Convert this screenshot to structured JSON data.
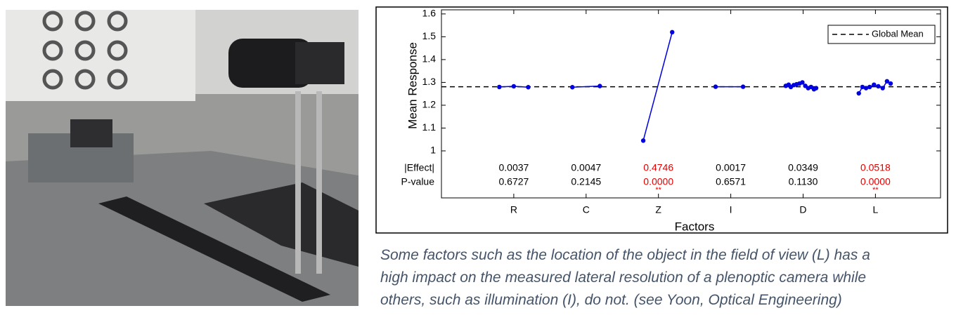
{
  "chart_data": {
    "type": "line",
    "ylabel": "Mean Response",
    "xlabel": "Factors",
    "categories": [
      "R",
      "C",
      "Z",
      "I",
      "D",
      "L"
    ],
    "xlim": [
      0,
      6.9
    ],
    "ylim": [
      0.794,
      1.618
    ],
    "yticks": [
      {
        "value": 1,
        "label": "1"
      },
      1.1,
      1.2,
      1.3,
      1.4,
      1.5,
      1.6
    ],
    "series": [
      {
        "color": "#0000e0",
        "x": [
          0.8,
          1.0,
          1.2
        ],
        "values": [
          1.28,
          1.283,
          1.279
        ]
      },
      {
        "color": "#0000e0",
        "x": [
          1.81,
          2.19
        ],
        "values": [
          1.279,
          1.284
        ]
      },
      {
        "color": "#0000e0",
        "x": [
          2.79,
          3.19
        ],
        "values": [
          1.045,
          1.52
        ]
      },
      {
        "color": "#0000e0",
        "x": [
          3.79,
          4.17
        ],
        "values": [
          1.281,
          1.281
        ]
      },
      {
        "color": "#0000e0",
        "x": [
          4.76,
          4.8,
          4.83,
          4.87,
          4.91,
          4.95,
          4.99,
          5.03,
          5.07,
          5.11,
          5.15,
          5.18
        ],
        "values": [
          1.285,
          1.29,
          1.28,
          1.288,
          1.292,
          1.295,
          1.3,
          1.285,
          1.275,
          1.28,
          1.27,
          1.275
        ]
      },
      {
        "color": "#0000e0",
        "x": [
          5.77,
          5.82,
          5.87,
          5.92,
          5.98,
          6.04,
          6.1,
          6.16,
          6.21
        ],
        "values": [
          1.252,
          1.28,
          1.275,
          1.28,
          1.29,
          1.283,
          1.275,
          1.305,
          1.295
        ]
      }
    ],
    "reference_line": {
      "name": "Global Mean",
      "value": 1.281
    },
    "legend": "top-right",
    "row_labels": [
      "|Effect|",
      "P-value"
    ],
    "effects": [
      "0.0037",
      "0.0047",
      "0.4746",
      "0.0017",
      "0.0349",
      "0.0518"
    ],
    "p_values": [
      "0.6727",
      "0.2145",
      "0.0000",
      "0.6571",
      "0.1130",
      "0.0000"
    ],
    "significant": [
      false,
      false,
      true,
      false,
      false,
      true
    ],
    "significance_mark": "**",
    "highlight_color": "#e00000"
  },
  "caption": [
    "Some factors such as the location of the object in the field of view (L) has a",
    "high impact on the measured lateral resolution of a plenoptic camera while",
    "others, such as illumination (I), do not. (see Yoon, Optical Engineering)"
  ]
}
